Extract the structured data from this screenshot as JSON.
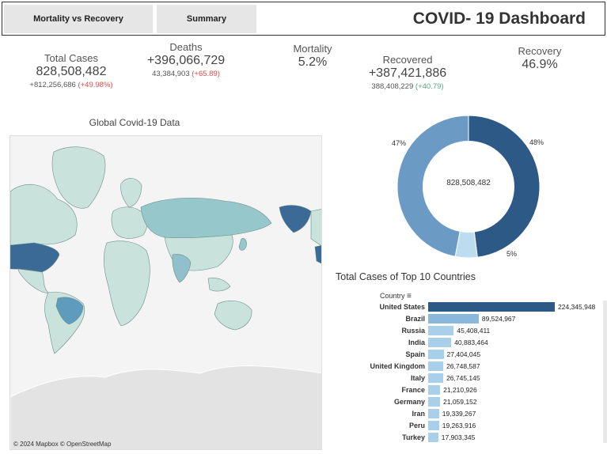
{
  "header": {
    "tab_mortality": "Mortality vs Recovery",
    "tab_summary": "Summary",
    "title": "COVID- 19 Dashboard"
  },
  "kpis": {
    "total_cases": {
      "label": "Total Cases",
      "value": "828,508,482",
      "sub_prefix": "+812,256,686",
      "sub_change": "(+49.98%)"
    },
    "deaths": {
      "label": "Deaths",
      "value": "+396,066,729",
      "sub_prefix": "43,384,903",
      "sub_change": "(+65.89)"
    },
    "mortality": {
      "label": "Mortality",
      "value": "5.2%"
    },
    "recovered": {
      "label": "Recovered",
      "value": "+387,421,886",
      "sub_prefix": "388,408,229",
      "sub_change": "(+40.79)"
    },
    "recovery": {
      "label": "Recovery",
      "value": "46.9%"
    }
  },
  "map": {
    "title": "Global Covid-19 Data",
    "attribution": "© 2024 Mapbox  © OpenStreetMap"
  },
  "colors": {
    "dark_blue": "#2d5986",
    "mid_blue": "#6b9ac4",
    "light_blue": "#bcdcf0",
    "bar_light": "#a9d0ea"
  },
  "chart_data": [
    {
      "type": "pie",
      "center_label": "828,508,482",
      "slices": [
        {
          "label": "48%",
          "value": 48,
          "color": "#2d5986"
        },
        {
          "label": "5%",
          "value": 5,
          "color": "#bcdcf0"
        },
        {
          "label": "47%",
          "value": 47,
          "color": "#6b9ac4"
        }
      ]
    },
    {
      "type": "bar",
      "title": "Total Cases of Top 10 Countries",
      "axis_label": "Country",
      "categories": [
        "United States",
        "Brazil",
        "Russia",
        "India",
        "Spain",
        "United Kingdom",
        "Italy",
        "France",
        "Germany",
        "Iran",
        "Peru",
        "Turkey"
      ],
      "values": [
        224345948,
        89524967,
        45408411,
        40883464,
        27404045,
        26748587,
        26745145,
        21210926,
        21059152,
        19339267,
        19263916,
        17903345
      ],
      "value_labels": [
        "224,345,948",
        "89,524,967",
        "45,408,411",
        "40,883,464",
        "27,404,045",
        "26,748,587",
        "26,745,145",
        "21,210,926",
        "21,059,152",
        "19,339,267",
        "19,263,916",
        "17,903,345"
      ]
    }
  ]
}
